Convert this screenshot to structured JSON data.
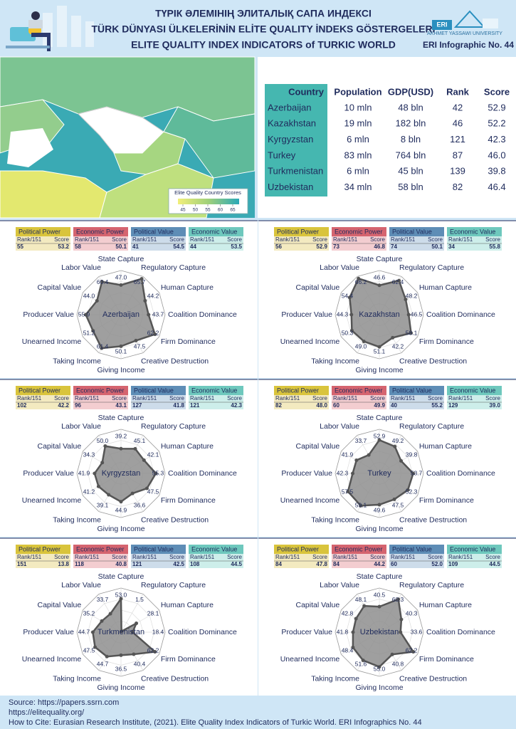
{
  "header": {
    "title_kz": "ТҮРІК ӘЛЕМІНІҢ ЭЛИТАЛЫҚ САПА ИНДЕКСІ",
    "title_tr": "TÜRK DÜNYASI ÜLKELERİNİN ELİTE QUALITY İNDEKS GÖSTERGELERİ",
    "title_en": "ELITE QUALITY INDEX INDICATORS of TURKIC WORLD",
    "logo": "ERI",
    "university": "AKHMET YASSAWI UNIVERSITY",
    "infographic": "ERI Infographic No. 44"
  },
  "map": {
    "legend_title": "Elite Quality Country Scores",
    "legend_ticks": [
      45,
      50,
      55,
      60,
      65
    ]
  },
  "table": {
    "columns": [
      "Country",
      "Population",
      "GDP(USD)",
      "Rank",
      "Score"
    ],
    "rows": [
      [
        "Azerbaijan",
        "10 mln",
        "48 bln",
        "42",
        "52.9"
      ],
      [
        "Kazakhstan",
        "19 mln",
        "182 bln",
        "46",
        "52.2"
      ],
      [
        "Kyrgyzstan",
        "6 mln",
        "8 bln",
        "121",
        "42.3"
      ],
      [
        "Turkey",
        "83 mln",
        "764 bln",
        "87",
        "46.0"
      ],
      [
        "Turkmenistan",
        "6 mln",
        "45 bln",
        "139",
        "39.8"
      ],
      [
        "Uzbekistan",
        "34 mln",
        "58 bln",
        "82",
        "46.4"
      ]
    ]
  },
  "rank_label": "Rank/151",
  "score_label": "Score",
  "chart_data": [
    {
      "type": "radar",
      "title": "Azerbaijan",
      "categories": [
        "State Capture",
        "Regulatory Capture",
        "Human Capture",
        "Coalition Dominance",
        "Firm Dominance",
        "Creative Destruction",
        "Giving Income",
        "Taking Income",
        "Unearned Income",
        "Producer Value",
        "Capital Value",
        "Labor Value"
      ],
      "values": [
        47.0,
        65.7,
        44.2,
        43.7,
        62.2,
        47.5,
        50.1,
        61.4,
        51.2,
        55.9,
        44.0,
        60.4
      ],
      "value_labels": [
        "47.0",
        "65.7",
        "44.2",
        "43.7",
        "62.2",
        "47.5",
        "50.1",
        "61.4",
        "51.2",
        "55.9",
        "44.0",
        "60.4"
      ],
      "rlim": [
        0,
        70
      ],
      "indicators": [
        {
          "name": "Political Power",
          "rank": 55,
          "score": "53.2"
        },
        {
          "name": "Economic Power",
          "rank": 58,
          "score": "50.1"
        },
        {
          "name": "Political Value",
          "rank": 41,
          "score": "54.5"
        },
        {
          "name": "Economic Value",
          "rank": 44,
          "score": "53.5"
        }
      ]
    },
    {
      "type": "radar",
      "title": "Kazakhstan",
      "categories": [
        "State Capture",
        "Regulatory Capture",
        "Human Capture",
        "Coalition Dominance",
        "Firm Dominance",
        "Creative Destruction",
        "Giving Income",
        "Taking Income",
        "Unearned Income",
        "Producer Value",
        "Capital Value",
        "Labor Value"
      ],
      "values": [
        46.6,
        62.4,
        48.2,
        46.5,
        58.1,
        42.2,
        51.1,
        49.0,
        50.3,
        44.3,
        54.4,
        66.2
      ],
      "value_labels": [
        "46.6",
        "62.4",
        "48.2",
        "46.5",
        "58.1",
        "42.2",
        "51.1",
        "49.0",
        "50.3",
        "44.3",
        "54.4",
        "66.2"
      ],
      "rlim": [
        0,
        70
      ],
      "indicators": [
        {
          "name": "Political Power",
          "rank": 56,
          "score": "52.9"
        },
        {
          "name": "Economic Power",
          "rank": 73,
          "score": "46.8"
        },
        {
          "name": "Political Value",
          "rank": 74,
          "score": "50.1"
        },
        {
          "name": "Economic Value",
          "rank": 34,
          "score": "55.8"
        }
      ]
    },
    {
      "type": "radar",
      "title": "Kyrgyzstan",
      "categories": [
        "State Capture",
        "Regulatory Capture",
        "Human Capture",
        "Coalition Dominance",
        "Firm Dominance",
        "Creative Destruction",
        "Giving Income",
        "Taking Income",
        "Unearned Income",
        "Producer Value",
        "Capital Value",
        "Labor Value"
      ],
      "values": [
        39.2,
        45.1,
        42.1,
        55.3,
        47.5,
        36.6,
        44.9,
        39.1,
        41.2,
        41.9,
        34.3,
        50.0
      ],
      "value_labels": [
        "39.2",
        "45.1",
        "42.1",
        "55.3",
        "47.5",
        "36.6",
        "44.9",
        "39.1",
        "41.2",
        "41.9",
        "34.3",
        "50.0"
      ],
      "rlim": [
        0,
        70
      ],
      "indicators": [
        {
          "name": "Political Power",
          "rank": 102,
          "score": "42.2"
        },
        {
          "name": "Economic Power",
          "rank": 96,
          "score": "43.1"
        },
        {
          "name": "Political Value",
          "rank": 127,
          "score": "41.8"
        },
        {
          "name": "Economic Value",
          "rank": 121,
          "score": "42.3"
        }
      ]
    },
    {
      "type": "radar",
      "title": "Turkey",
      "categories": [
        "State Capture",
        "Regulatory Capture",
        "Human Capture",
        "Coalition Dominance",
        "Firm Dominance",
        "Creative Destruction",
        "Giving Income",
        "Taking Income",
        "Unearned Income",
        "Producer Value",
        "Capital Value",
        "Labor Value"
      ],
      "values": [
        52.9,
        49.2,
        39.8,
        53.7,
        52.3,
        47.5,
        49.6,
        59.1,
        57.5,
        42.3,
        41.9,
        33.7
      ],
      "value_labels": [
        "52.9",
        "49.2",
        "39.8",
        "53.7",
        "52.3",
        "47.5",
        "49.6",
        "59.1",
        "57.5",
        "42.3",
        "41.9",
        "33.7"
      ],
      "rlim": [
        0,
        70
      ],
      "indicators": [
        {
          "name": "Political Power",
          "rank": 82,
          "score": "48.0"
        },
        {
          "name": "Economic Power",
          "rank": 60,
          "score": "49.9"
        },
        {
          "name": "Political Value",
          "rank": 40,
          "score": "55.2"
        },
        {
          "name": "Economic Value",
          "rank": 129,
          "score": "39.0"
        }
      ]
    },
    {
      "type": "radar",
      "title": "Turkmenistan",
      "categories": [
        "State Capture",
        "Regulatory Capture",
        "Human Capture",
        "Coalition Dominance",
        "Firm Dominance",
        "Creative Destruction",
        "Giving Income",
        "Taking Income",
        "Unearned Income",
        "Producer Value",
        "Capital Value",
        "Labor Value"
      ],
      "values": [
        53.0,
        1.5,
        28.1,
        18.4,
        62.2,
        40.4,
        36.5,
        44.7,
        47.5,
        44.7,
        35.2,
        33.7
      ],
      "value_labels": [
        "53.0",
        "1.5",
        "28.1",
        "18.4",
        "62.2",
        "40.4",
        "36.5",
        "44.7",
        "47.5",
        "44.7",
        "35.2",
        "33.7"
      ],
      "rlim": [
        0,
        70
      ],
      "indicators": [
        {
          "name": "Political Power",
          "rank": 151,
          "score": "13.8"
        },
        {
          "name": "Economic Power",
          "rank": 118,
          "score": "40.8"
        },
        {
          "name": "Political Value",
          "rank": 121,
          "score": "42.5"
        },
        {
          "name": "Economic Value",
          "rank": 108,
          "score": "44.5"
        }
      ]
    },
    {
      "type": "radar",
      "title": "Uzbekistan",
      "categories": [
        "State Capture",
        "Regulatory Capture",
        "Human Capture",
        "Coalition Dominance",
        "Firm Dominance",
        "Creative Destruction",
        "Giving Income",
        "Taking Income",
        "Unearned Income",
        "Producer Value",
        "Capital Value",
        "Labor Value"
      ],
      "values": [
        40.5,
        60.3,
        40.3,
        33.6,
        62.2,
        40.8,
        55.0,
        51.6,
        48.4,
        41.8,
        42.8,
        48.1
      ],
      "value_labels": [
        "40.5",
        "60.3",
        "40.3",
        "33.6",
        "62.2",
        "40.8",
        "55.0",
        "51.6",
        "48.4",
        "41.8",
        "42.8",
        "48.1"
      ],
      "rlim": [
        0,
        70
      ],
      "indicators": [
        {
          "name": "Political Power",
          "rank": 84,
          "score": "47.8"
        },
        {
          "name": "Economic Power",
          "rank": 84,
          "score": "44.2"
        },
        {
          "name": "Political Value",
          "rank": 60,
          "score": "52.0"
        },
        {
          "name": "Economic Value",
          "rank": 109,
          "score": "44.5"
        }
      ]
    }
  ],
  "footer": {
    "source": "Source: https://papers.ssrn.com",
    "url": "https://elitequality.org/",
    "cite": "How to Cite: Eurasian Research Institute, (2021). Elite Quality Index Indicators of Turkic World. ERI Infographics No. 44"
  }
}
